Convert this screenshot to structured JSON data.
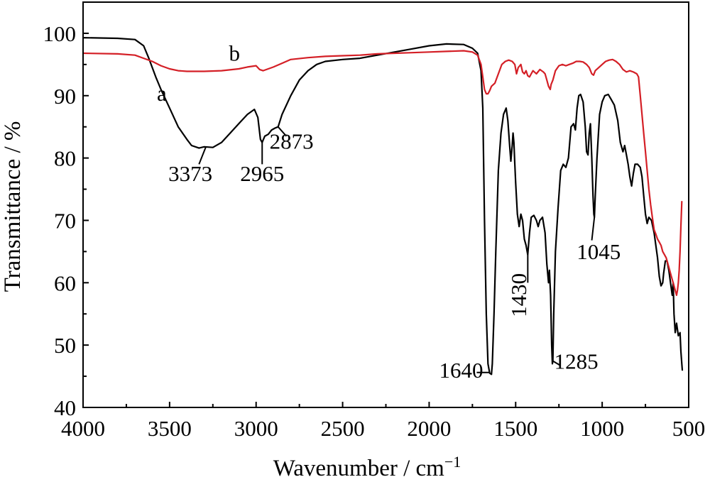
{
  "chart_data": {
    "type": "line",
    "xlabel": "Wavenumber / cm",
    "xlabel_sup": "−1",
    "ylabel": "Transmittance / %",
    "xlim": [
      4000,
      500
    ],
    "ylim": [
      40,
      105
    ],
    "x_reversed": true,
    "grid": false,
    "x_ticks": [
      4000,
      3500,
      3000,
      2500,
      2000,
      1500,
      1000,
      500
    ],
    "x_tick_labels": [
      "4000",
      "3500",
      "3000",
      "2500",
      "2000",
      "1500",
      "1000",
      "500"
    ],
    "y_ticks": [
      40,
      50,
      60,
      70,
      80,
      90,
      100
    ],
    "y_tick_labels": [
      "40",
      "50",
      "60",
      "70",
      "80",
      "90",
      "100"
    ],
    "series": [
      {
        "name": "a",
        "color": "#000000",
        "points": [
          [
            4000,
            99.3
          ],
          [
            3800,
            99.2
          ],
          [
            3700,
            99.0
          ],
          [
            3650,
            98.0
          ],
          [
            3620,
            96.0
          ],
          [
            3580,
            93.0
          ],
          [
            3550,
            91.0
          ],
          [
            3500,
            88.0
          ],
          [
            3450,
            85.0
          ],
          [
            3400,
            83.0
          ],
          [
            3373,
            82.0
          ],
          [
            3330,
            81.6
          ],
          [
            3300,
            81.8
          ],
          [
            3250,
            81.7
          ],
          [
            3200,
            82.5
          ],
          [
            3150,
            84.0
          ],
          [
            3100,
            85.5
          ],
          [
            3050,
            87.0
          ],
          [
            3010,
            87.8
          ],
          [
            2990,
            86.5
          ],
          [
            2975,
            83.0
          ],
          [
            2965,
            82.5
          ],
          [
            2950,
            83.5
          ],
          [
            2930,
            83.8
          ],
          [
            2910,
            84.5
          ],
          [
            2890,
            84.8
          ],
          [
            2873,
            85.0
          ],
          [
            2850,
            87.0
          ],
          [
            2800,
            90.0
          ],
          [
            2750,
            92.5
          ],
          [
            2700,
            94.0
          ],
          [
            2650,
            95.0
          ],
          [
            2600,
            95.5
          ],
          [
            2500,
            95.8
          ],
          [
            2400,
            96.0
          ],
          [
            2300,
            96.5
          ],
          [
            2200,
            97.0
          ],
          [
            2100,
            97.5
          ],
          [
            2000,
            98.0
          ],
          [
            1900,
            98.3
          ],
          [
            1800,
            98.2
          ],
          [
            1750,
            97.6
          ],
          [
            1720,
            96.8
          ],
          [
            1700,
            94.0
          ],
          [
            1690,
            88.0
          ],
          [
            1680,
            70.0
          ],
          [
            1670,
            55.0
          ],
          [
            1660,
            47.0
          ],
          [
            1650,
            45.5
          ],
          [
            1640,
            45.3
          ],
          [
            1635,
            47.0
          ],
          [
            1625,
            55.0
          ],
          [
            1615,
            65.0
          ],
          [
            1600,
            78.0
          ],
          [
            1585,
            84.0
          ],
          [
            1570,
            87.0
          ],
          [
            1555,
            88.0
          ],
          [
            1545,
            86.0
          ],
          [
            1535,
            82.0
          ],
          [
            1528,
            79.5
          ],
          [
            1520,
            82.0
          ],
          [
            1515,
            84.0
          ],
          [
            1510,
            82.5
          ],
          [
            1505,
            79.0
          ],
          [
            1500,
            76.0
          ],
          [
            1495,
            73.5
          ],
          [
            1490,
            71.0
          ],
          [
            1480,
            69.0
          ],
          [
            1470,
            71.0
          ],
          [
            1460,
            70.0
          ],
          [
            1450,
            67.0
          ],
          [
            1440,
            66.0
          ],
          [
            1430,
            64.5
          ],
          [
            1420,
            68.0
          ],
          [
            1410,
            70.5
          ],
          [
            1395,
            70.8
          ],
          [
            1380,
            70.0
          ],
          [
            1370,
            69.0
          ],
          [
            1360,
            70.0
          ],
          [
            1345,
            70.5
          ],
          [
            1330,
            68.0
          ],
          [
            1320,
            63.0
          ],
          [
            1310,
            60.0
          ],
          [
            1305,
            62.0
          ],
          [
            1298,
            58.0
          ],
          [
            1292,
            50.0
          ],
          [
            1288,
            47.0
          ],
          [
            1285,
            47.5
          ],
          [
            1280,
            55.0
          ],
          [
            1270,
            65.0
          ],
          [
            1255,
            72.0
          ],
          [
            1240,
            78.0
          ],
          [
            1225,
            79.0
          ],
          [
            1210,
            78.5
          ],
          [
            1195,
            80.0
          ],
          [
            1180,
            85.0
          ],
          [
            1165,
            85.5
          ],
          [
            1155,
            84.5
          ],
          [
            1145,
            88.0
          ],
          [
            1135,
            90.0
          ],
          [
            1125,
            90.2
          ],
          [
            1110,
            89.0
          ],
          [
            1098,
            85.0
          ],
          [
            1090,
            81.0
          ],
          [
            1082,
            80.5
          ],
          [
            1075,
            84.0
          ],
          [
            1068,
            85.5
          ],
          [
            1060,
            80.0
          ],
          [
            1053,
            74.0
          ],
          [
            1048,
            71.0
          ],
          [
            1045,
            70.5
          ],
          [
            1040,
            74.0
          ],
          [
            1030,
            80.0
          ],
          [
            1015,
            87.0
          ],
          [
            1000,
            89.0
          ],
          [
            985,
            90.0
          ],
          [
            965,
            90.2
          ],
          [
            950,
            89.5
          ],
          [
            930,
            88.5
          ],
          [
            910,
            86.0
          ],
          [
            895,
            82.5
          ],
          [
            880,
            81.0
          ],
          [
            870,
            82.0
          ],
          [
            860,
            80.5
          ],
          [
            850,
            79.0
          ],
          [
            840,
            77.0
          ],
          [
            830,
            75.5
          ],
          [
            820,
            77.5
          ],
          [
            810,
            79.0
          ],
          [
            795,
            79.0
          ],
          [
            780,
            78.5
          ],
          [
            770,
            77.0
          ],
          [
            760,
            74.0
          ],
          [
            750,
            71.0
          ],
          [
            740,
            69.5
          ],
          [
            730,
            70.5
          ],
          [
            715,
            70.0
          ],
          [
            700,
            68.0
          ],
          [
            690,
            66.0
          ],
          [
            680,
            64.0
          ],
          [
            670,
            61.0
          ],
          [
            660,
            59.5
          ],
          [
            650,
            60.0
          ],
          [
            645,
            61.5
          ],
          [
            635,
            63.5
          ],
          [
            625,
            63.5
          ],
          [
            615,
            62.0
          ],
          [
            605,
            60.0
          ],
          [
            595,
            58.0
          ],
          [
            590,
            60.0
          ],
          [
            585,
            55.0
          ],
          [
            578,
            52.0
          ],
          [
            570,
            53.5
          ],
          [
            560,
            51.5
          ],
          [
            550,
            52.0
          ],
          [
            545,
            49.0
          ],
          [
            540,
            47.0
          ],
          [
            537,
            46.0
          ]
        ]
      },
      {
        "name": "b",
        "color": "#d41f26",
        "points": [
          [
            4000,
            96.8
          ],
          [
            3800,
            96.7
          ],
          [
            3700,
            96.5
          ],
          [
            3650,
            96.0
          ],
          [
            3600,
            95.5
          ],
          [
            3550,
            94.8
          ],
          [
            3500,
            94.3
          ],
          [
            3450,
            94.0
          ],
          [
            3400,
            93.9
          ],
          [
            3300,
            93.9
          ],
          [
            3200,
            94.0
          ],
          [
            3100,
            94.3
          ],
          [
            3050,
            94.6
          ],
          [
            3000,
            94.8
          ],
          [
            2980,
            94.2
          ],
          [
            2960,
            94.0
          ],
          [
            2930,
            94.3
          ],
          [
            2900,
            94.6
          ],
          [
            2850,
            95.2
          ],
          [
            2800,
            95.8
          ],
          [
            2700,
            96.1
          ],
          [
            2600,
            96.3
          ],
          [
            2500,
            96.4
          ],
          [
            2400,
            96.5
          ],
          [
            2300,
            96.7
          ],
          [
            2200,
            96.8
          ],
          [
            2100,
            96.9
          ],
          [
            2000,
            97.0
          ],
          [
            1900,
            97.1
          ],
          [
            1800,
            97.2
          ],
          [
            1750,
            97.0
          ],
          [
            1720,
            96.5
          ],
          [
            1700,
            95.0
          ],
          [
            1690,
            93.0
          ],
          [
            1680,
            91.0
          ],
          [
            1670,
            90.3
          ],
          [
            1660,
            90.3
          ],
          [
            1650,
            90.8
          ],
          [
            1640,
            91.5
          ],
          [
            1620,
            92.0
          ],
          [
            1600,
            93.5
          ],
          [
            1580,
            95.0
          ],
          [
            1560,
            95.5
          ],
          [
            1540,
            95.7
          ],
          [
            1520,
            95.5
          ],
          [
            1505,
            95.0
          ],
          [
            1495,
            93.5
          ],
          [
            1485,
            94.5
          ],
          [
            1470,
            95.0
          ],
          [
            1460,
            93.8
          ],
          [
            1450,
            93.5
          ],
          [
            1440,
            94.0
          ],
          [
            1430,
            93.2
          ],
          [
            1420,
            93.0
          ],
          [
            1410,
            93.5
          ],
          [
            1400,
            94.0
          ],
          [
            1380,
            93.5
          ],
          [
            1360,
            94.2
          ],
          [
            1340,
            93.8
          ],
          [
            1330,
            93.5
          ],
          [
            1320,
            92.5
          ],
          [
            1310,
            91.5
          ],
          [
            1300,
            91.0
          ],
          [
            1295,
            91.8
          ],
          [
            1285,
            92.5
          ],
          [
            1270,
            94.0
          ],
          [
            1250,
            94.8
          ],
          [
            1230,
            95.0
          ],
          [
            1210,
            94.8
          ],
          [
            1190,
            95.0
          ],
          [
            1170,
            95.2
          ],
          [
            1150,
            95.5
          ],
          [
            1130,
            95.5
          ],
          [
            1110,
            95.4
          ],
          [
            1090,
            95.0
          ],
          [
            1075,
            94.5
          ],
          [
            1060,
            93.5
          ],
          [
            1050,
            93.3
          ],
          [
            1040,
            94.0
          ],
          [
            1020,
            94.5
          ],
          [
            1000,
            95.0
          ],
          [
            980,
            95.5
          ],
          [
            960,
            95.7
          ],
          [
            940,
            95.8
          ],
          [
            920,
            95.5
          ],
          [
            900,
            95.0
          ],
          [
            880,
            94.2
          ],
          [
            860,
            93.8
          ],
          [
            840,
            94.0
          ],
          [
            820,
            93.8
          ],
          [
            800,
            93.5
          ],
          [
            790,
            93.0
          ],
          [
            780,
            90.0
          ],
          [
            770,
            87.0
          ],
          [
            760,
            84.0
          ],
          [
            750,
            81.0
          ],
          [
            740,
            78.0
          ],
          [
            730,
            75.0
          ],
          [
            720,
            72.5
          ],
          [
            710,
            70.5
          ],
          [
            700,
            68.5
          ],
          [
            690,
            67.8
          ],
          [
            680,
            67.0
          ],
          [
            670,
            66.5
          ],
          [
            660,
            66.0
          ],
          [
            650,
            65.0
          ],
          [
            640,
            64.5
          ],
          [
            630,
            64.0
          ],
          [
            620,
            63.0
          ],
          [
            610,
            62.0
          ],
          [
            600,
            61.0
          ],
          [
            590,
            60.0
          ],
          [
            580,
            59.0
          ],
          [
            575,
            58.5
          ],
          [
            570,
            58.0
          ],
          [
            565,
            58.8
          ],
          [
            560,
            60.0
          ],
          [
            555,
            62.0
          ],
          [
            550,
            65.0
          ],
          [
            545,
            69.0
          ],
          [
            540,
            73.0
          ]
        ]
      }
    ],
    "annotations": [
      {
        "label": "a",
        "text_at": [
          3545,
          89.2
        ],
        "leader": null
      },
      {
        "label": "b",
        "text_at": [
          3125,
          95.6
        ],
        "leader": null
      },
      {
        "label": "3373",
        "text_at": [
          3380,
          76.3
        ],
        "leader": [
          [
            3330,
            79.0
          ],
          [
            3290,
            81.8
          ]
        ]
      },
      {
        "label": "2965",
        "text_at": [
          2965,
          76.3
        ],
        "leader": [
          [
            2965,
            79.0
          ],
          [
            2965,
            82.5
          ]
        ]
      },
      {
        "label": "2873",
        "text_at": [
          2795,
          81.5
        ],
        "leader": [
          [
            2825,
            83.5
          ],
          [
            2873,
            85.0
          ]
        ]
      },
      {
        "label": "1640",
        "text_at": [
          1815,
          44.8
        ],
        "leader": [
          [
            1725,
            45.6
          ],
          [
            1648,
            45.6
          ]
        ]
      },
      {
        "label": "1430",
        "text_at": [
          1440,
          58.0
        ],
        "rotate": -90,
        "leader": [
          [
            1430,
            60.0
          ],
          [
            1430,
            64.5
          ]
        ]
      },
      {
        "label": "1285",
        "text_at": [
          1150,
          46.2
        ],
        "leader": [
          [
            1240,
            46.7
          ],
          [
            1288,
            47.5
          ]
        ]
      },
      {
        "label": "1045",
        "text_at": [
          1020,
          63.8
        ],
        "leader": [
          [
            1060,
            66.8
          ],
          [
            1045,
            70.5
          ]
        ]
      }
    ]
  }
}
